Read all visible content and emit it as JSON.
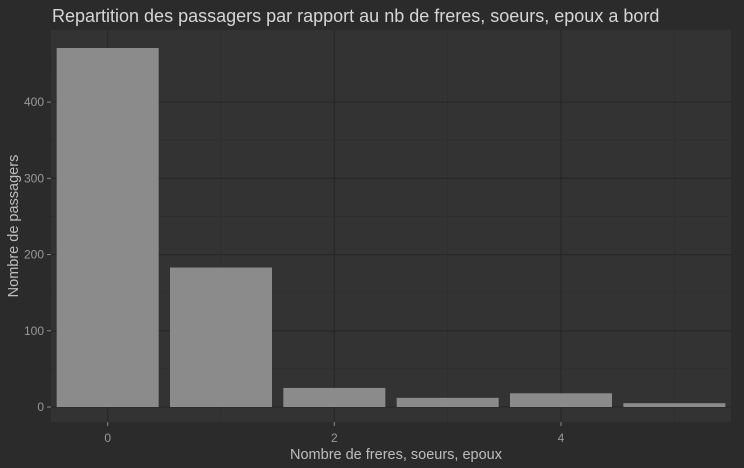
{
  "chart_data": {
    "type": "bar",
    "title": "Repartition des passagers par rapport au nb de freres, soeurs, epoux a bord",
    "xlabel": "Nombre de freres, soeurs, epoux",
    "ylabel": "Nombre de passagers",
    "categories": [
      0,
      1,
      2,
      3,
      4,
      5
    ],
    "values": [
      471,
      183,
      25,
      12,
      18,
      5
    ],
    "x_ticks": [
      0,
      2,
      4
    ],
    "y_ticks": [
      0,
      100,
      200,
      300,
      400
    ],
    "xlim": [
      -0.5,
      5.5
    ],
    "ylim": [
      0,
      471
    ],
    "grid": true,
    "colors": {
      "background": "#2b2b2b",
      "panel": "#333333",
      "bar": "#8b8b8b"
    }
  }
}
